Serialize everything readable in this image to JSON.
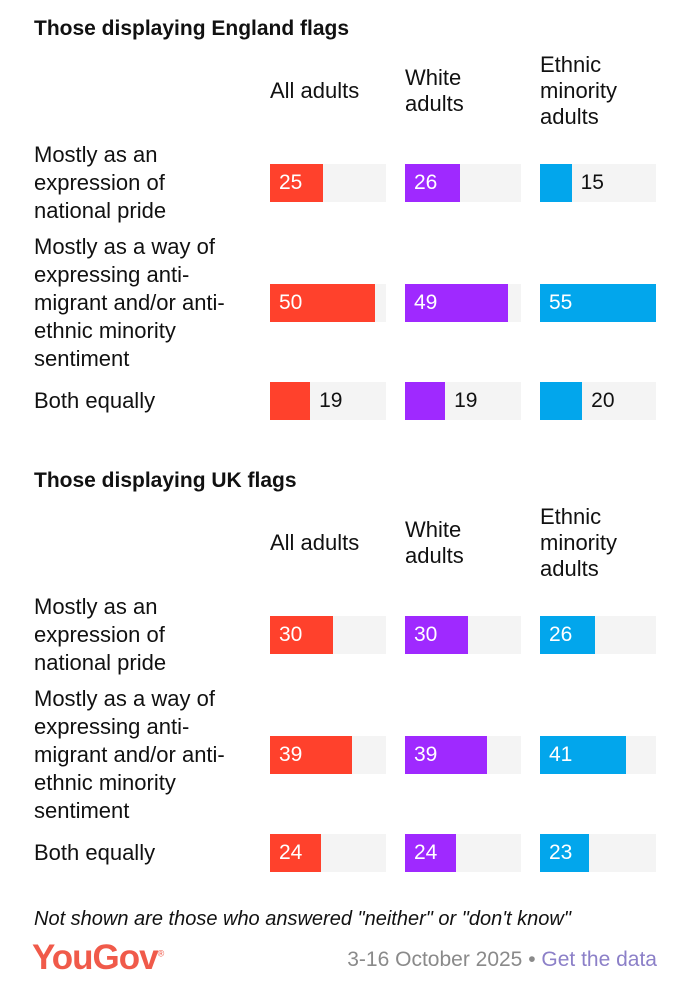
{
  "chart_data": [
    {
      "type": "bar",
      "title": "Those displaying England flags",
      "columns": [
        "All adults",
        "White adults",
        "Ethnic minority adults"
      ],
      "column_lines": [
        [
          "All adults"
        ],
        [
          "White",
          "adults"
        ],
        [
          "Ethnic",
          "minority",
          "adults"
        ]
      ],
      "categories": [
        "Mostly as an expression of national pride",
        "Mostly as a way of expressing anti-migrant and/or anti-ethnic minority sentiment",
        "Both equally"
      ],
      "category_lines": [
        [
          "Mostly as an",
          "expression of",
          "national pride"
        ],
        [
          "Mostly as a way of",
          "expressing anti-",
          "migrant and/or anti-",
          "ethnic minority",
          "sentiment"
        ],
        [
          "Both equally"
        ]
      ],
      "series": [
        {
          "name": "All adults",
          "values": [
            25,
            50,
            19
          ]
        },
        {
          "name": "White adults",
          "values": [
            26,
            49,
            19
          ]
        },
        {
          "name": "Ethnic minority adults",
          "values": [
            15,
            55,
            20
          ]
        }
      ],
      "xlim": [
        0,
        55
      ]
    },
    {
      "type": "bar",
      "title": "Those displaying UK flags",
      "columns": [
        "All adults",
        "White adults",
        "Ethnic minority adults"
      ],
      "column_lines": [
        [
          "All adults"
        ],
        [
          "White",
          "adults"
        ],
        [
          "Ethnic",
          "minority",
          "adults"
        ]
      ],
      "categories": [
        "Mostly as an expression of national pride",
        "Mostly as a way of expressing anti-migrant and/or anti-ethnic minority sentiment",
        "Both equally"
      ],
      "category_lines": [
        [
          "Mostly as an",
          "expression of",
          "national pride"
        ],
        [
          "Mostly as a way of",
          "expressing anti-",
          "migrant and/or anti-",
          "ethnic minority",
          "sentiment"
        ],
        [
          "Both equally"
        ]
      ],
      "series": [
        {
          "name": "All adults",
          "values": [
            30,
            39,
            24
          ]
        },
        {
          "name": "White adults",
          "values": [
            30,
            39,
            24
          ]
        },
        {
          "name": "Ethnic minority adults",
          "values": [
            26,
            41,
            23
          ]
        }
      ],
      "xlim": [
        0,
        55
      ]
    }
  ],
  "colors": {
    "all": "#ff412c",
    "white": "#9f29ff",
    "ethnic": "#02a6ec",
    "track": "#f4f4f4"
  },
  "footer": {
    "note": "Not shown are those who answered \"neither\" or \"don't know\"",
    "logo": "YouGov",
    "date": "3-16 October 2025",
    "separator": " • ",
    "link": "Get the data"
  }
}
